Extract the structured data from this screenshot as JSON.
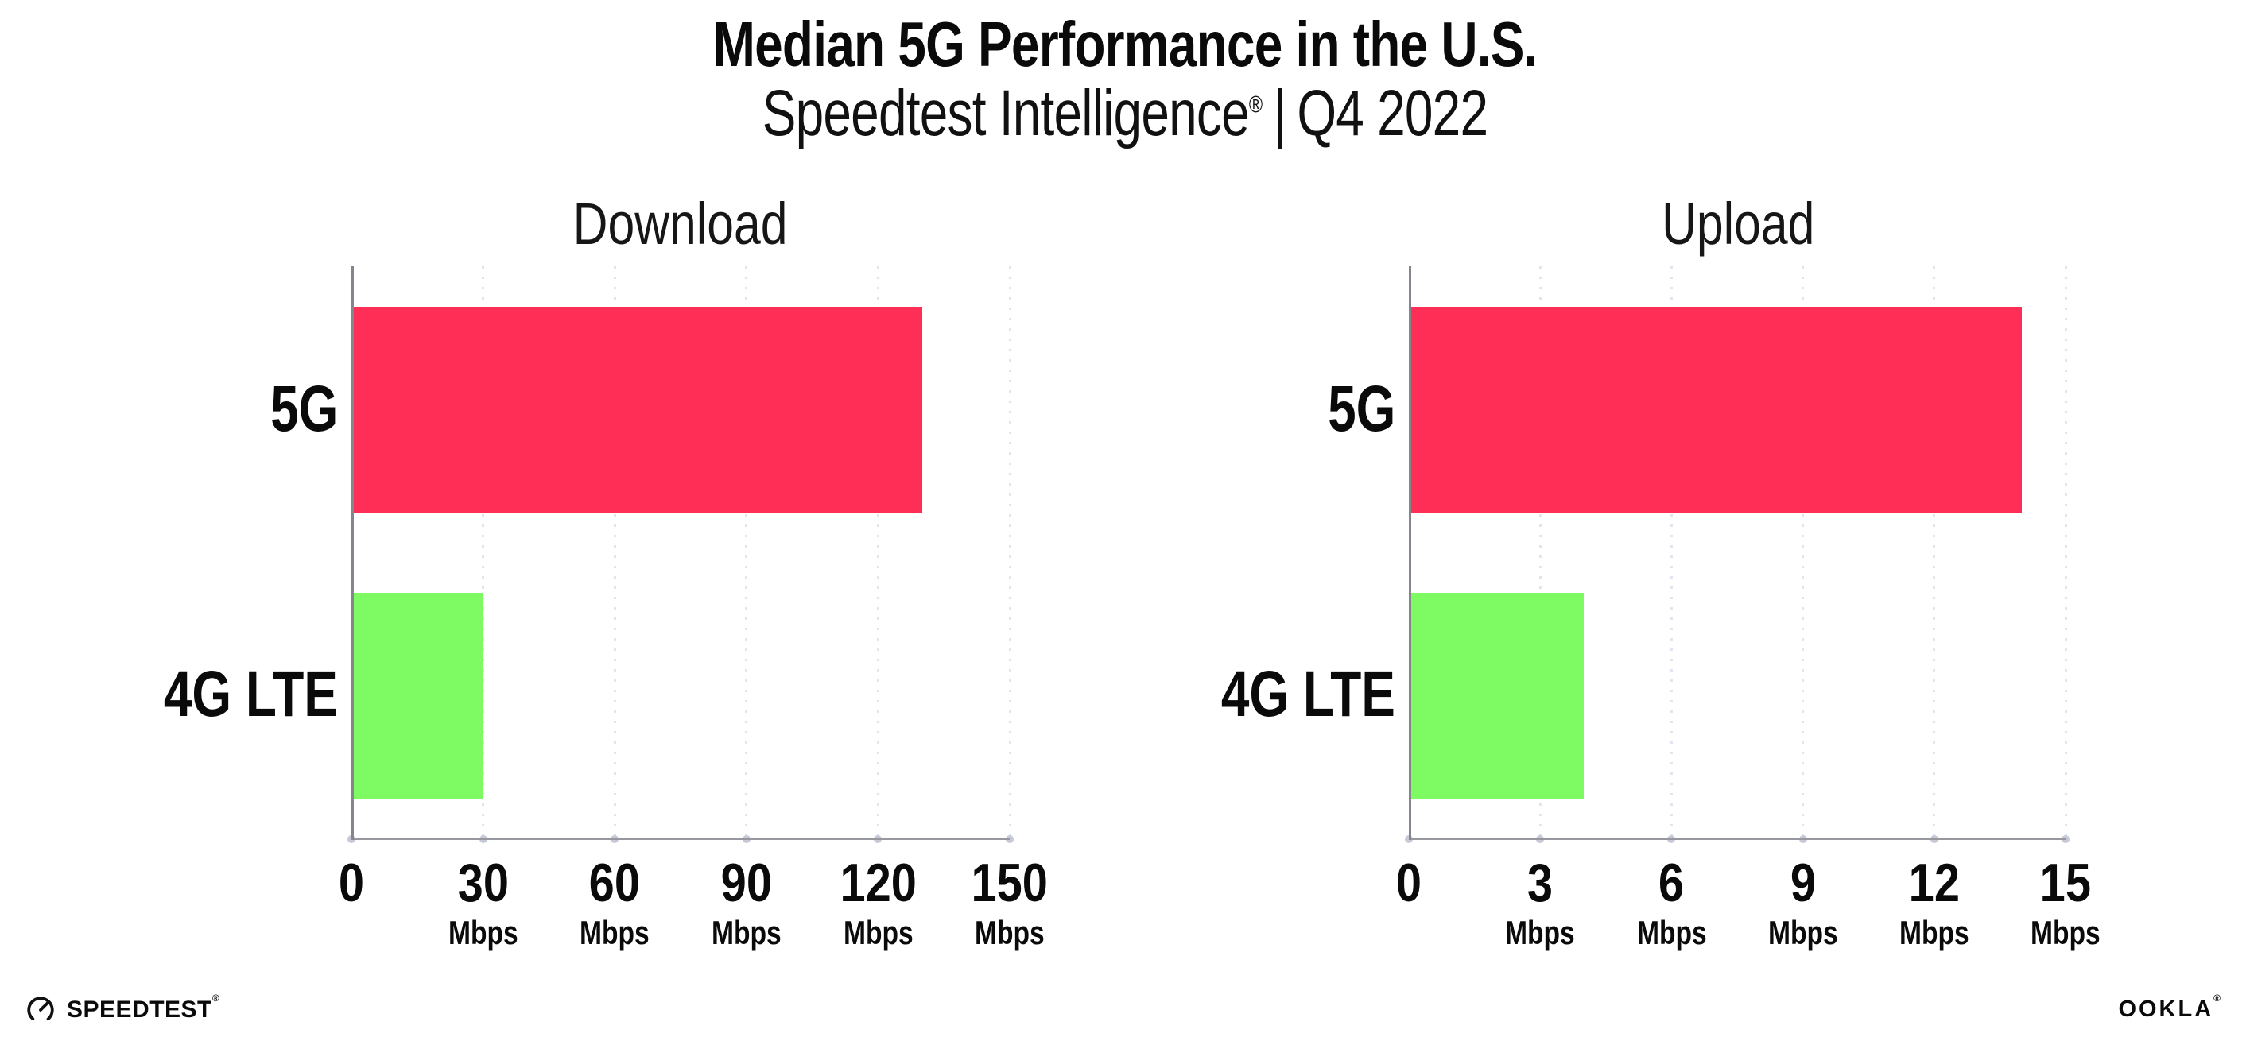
{
  "header": {
    "title": "Median 5G Performance in the U.S.",
    "subtitle_brand": "Speedtest Intelligence",
    "subtitle_reg": "®",
    "subtitle_divider": "|",
    "subtitle_period": "Q4 2022"
  },
  "chart_data": [
    {
      "type": "bar",
      "orientation": "horizontal",
      "title": "Download",
      "categories": [
        "5G",
        "4G LTE"
      ],
      "values": [
        130,
        30
      ],
      "unit": "Mbps",
      "xlim": [
        0,
        150
      ],
      "xticks": [
        0,
        30,
        60,
        90,
        120,
        150
      ],
      "bar_colors": [
        "#ff2e56",
        "#7efb63"
      ],
      "grid": "vertical-dotted",
      "legend": "none"
    },
    {
      "type": "bar",
      "orientation": "horizontal",
      "title": "Upload",
      "categories": [
        "5G",
        "4G LTE"
      ],
      "values": [
        14,
        4
      ],
      "unit": "Mbps",
      "xlim": [
        0,
        15
      ],
      "xticks": [
        0,
        3,
        6,
        9,
        12,
        15
      ],
      "bar_colors": [
        "#ff2e56",
        "#7efb63"
      ],
      "grid": "vertical-dotted",
      "legend": "none"
    }
  ],
  "colors": {
    "bar_5g": "#ff2e56",
    "bar_4g_lte": "#7efb63",
    "axis": "#97979f",
    "gridline": "#e4e4ee",
    "text": "#0a0a0a"
  },
  "footer": {
    "speedtest_logo_text": "SPEEDTEST",
    "speedtest_reg": "®",
    "ookla_logo_text": "OOKLA",
    "ookla_reg": "®"
  }
}
